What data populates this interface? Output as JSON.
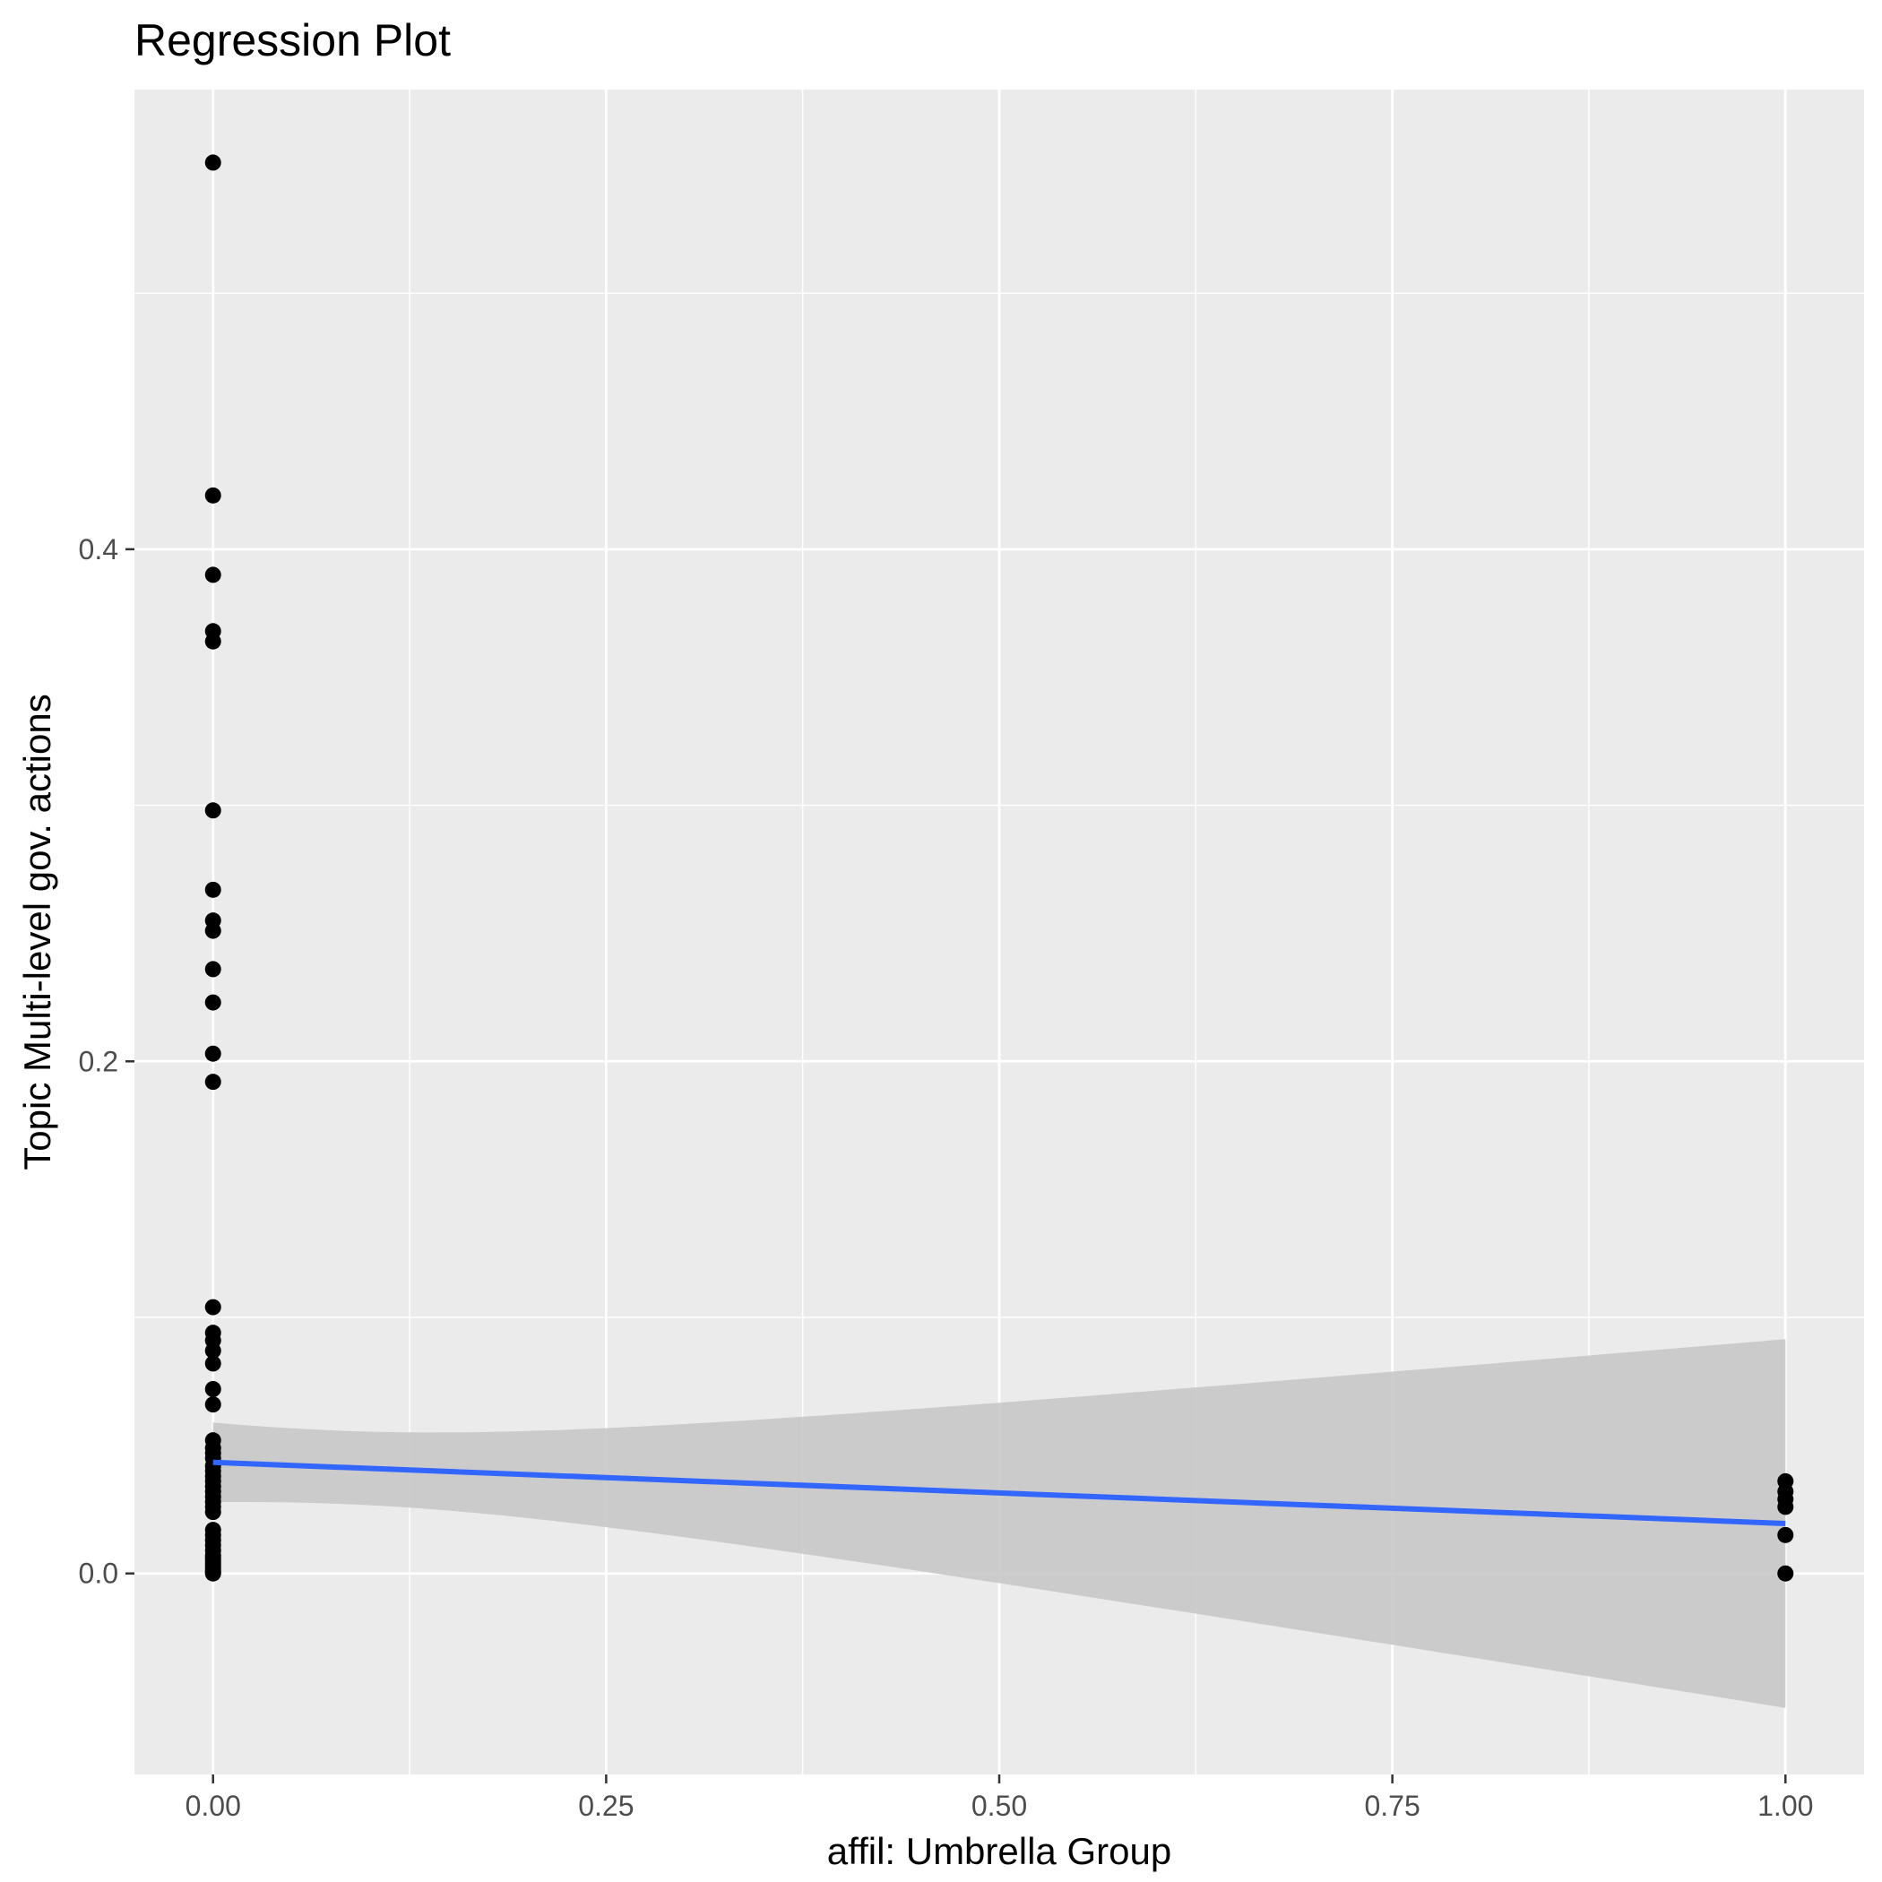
{
  "chart_data": {
    "type": "scatter",
    "title": "Regression Plot",
    "xlabel": "affil: Umbrella Group",
    "ylabel": "Topic Multi-level gov. actions",
    "xlim": [
      -0.05,
      1.05
    ],
    "ylim": [
      -0.0785,
      0.5795
    ],
    "x_ticks": [
      0,
      0.25,
      0.5,
      0.75,
      1.0
    ],
    "x_tick_labels": [
      "0.00",
      "0.25",
      "0.50",
      "0.75",
      "1.00"
    ],
    "y_ticks": [
      0,
      0.2,
      0.4
    ],
    "y_tick_labels": [
      "0.0",
      "0.2",
      "0.4"
    ],
    "grid": true,
    "legend": "none",
    "colors": {
      "panel": "#ebebeb",
      "grid": "#ffffff",
      "points": "#000000",
      "fit_line": "#3366ff",
      "confidence_band": "#c8c8c8"
    },
    "series": [
      {
        "type": "scatter",
        "x": [
          0,
          0,
          0,
          0,
          0,
          0,
          0,
          0,
          0,
          0,
          0,
          0,
          0,
          0,
          0,
          0,
          0,
          0,
          0,
          0,
          0,
          0,
          0,
          0,
          0,
          0,
          0,
          0,
          0,
          0,
          0,
          0,
          0,
          0,
          0,
          0,
          0,
          0,
          0,
          0,
          0,
          0,
          0,
          0,
          0,
          0,
          0,
          0,
          1,
          1,
          1,
          1,
          1,
          1
        ],
        "y": [
          0.551,
          0.421,
          0.39,
          0.368,
          0.364,
          0.298,
          0.267,
          0.255,
          0.251,
          0.236,
          0.223,
          0.203,
          0.192,
          0.104,
          0.094,
          0.091,
          0.087,
          0.082,
          0.072,
          0.066,
          0.052,
          0.049,
          0.047,
          0.045,
          0.042,
          0.04,
          0.038,
          0.036,
          0.034,
          0.032,
          0.03,
          0.028,
          0.026,
          0.024,
          0.017,
          0.015,
          0.013,
          0.011,
          0.009,
          0.007,
          0.006,
          0.005,
          0.004,
          0.003,
          0.002,
          0.001,
          0.0005,
          0.0,
          0.036,
          0.032,
          0.029,
          0.026,
          0.015,
          0.0
        ]
      }
    ],
    "regression": {
      "x": [
        0,
        1
      ],
      "y": [
        0.0434,
        0.0195
      ],
      "ci_lower": [
        0.0279,
        -0.0525
      ],
      "ci_upper": [
        0.059,
        0.0915
      ]
    }
  }
}
